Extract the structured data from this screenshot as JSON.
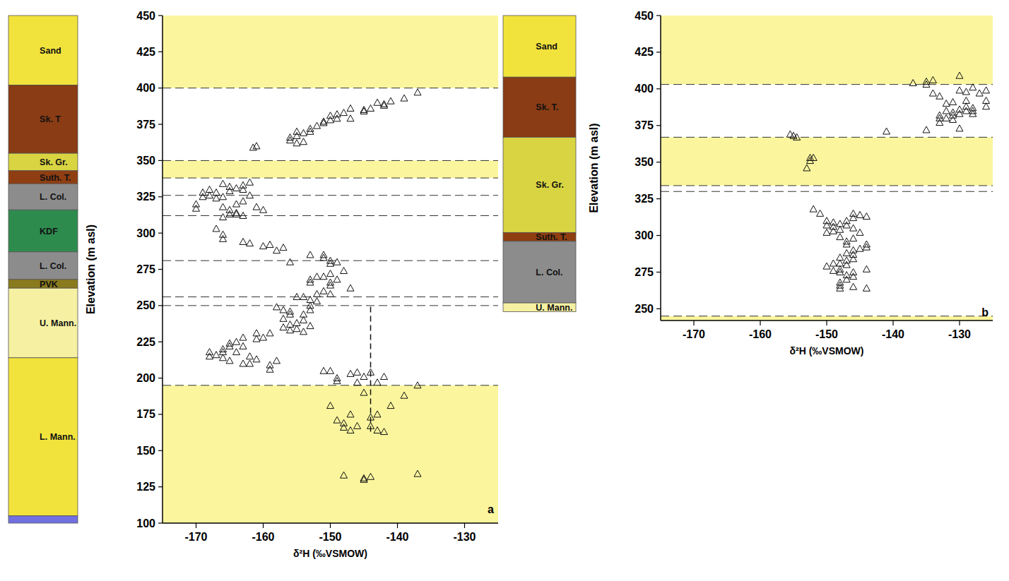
{
  "chart_data": [
    {
      "type": "scatter",
      "panel_label": "a",
      "x_label": "δ²H (‰VSMOW)",
      "y_label": "Elevation (m asl)",
      "marker": "triangle",
      "xlim": [
        -175,
        -125
      ],
      "ylim": [
        100,
        450
      ],
      "xticks": [
        -170,
        -160,
        -150,
        -140,
        -130
      ],
      "yticks": [
        100,
        125,
        150,
        175,
        200,
        225,
        250,
        275,
        300,
        325,
        350,
        375,
        400,
        425,
        450
      ],
      "x": [
        -137,
        -139,
        -141,
        -142,
        -143,
        -142,
        -144,
        -145,
        -145,
        -147,
        -148,
        -149,
        -149,
        -150,
        -150,
        -151,
        -151,
        -152,
        -153,
        -153,
        -154,
        -155,
        -155,
        -156,
        -156,
        -154,
        -155,
        -161.5,
        -161,
        -147,
        -170,
        -170,
        -169,
        -169,
        -168,
        -168,
        -167,
        -167,
        -166,
        -166,
        -165,
        -165,
        -164,
        -164,
        -163,
        -163,
        -164,
        -165,
        -165,
        -166,
        -163,
        -162,
        -162,
        -161,
        -160,
        -163,
        -164,
        -166,
        -167,
        -166,
        -166,
        -163,
        -162,
        -160,
        -159,
        -158,
        -157,
        -156,
        -153,
        -151,
        -151,
        -150,
        -150,
        -149,
        -148,
        -147,
        -150,
        -151,
        -152,
        -153,
        -153,
        -149,
        -150,
        -150,
        -151,
        -150,
        -152,
        -154,
        -155,
        -153,
        -152,
        -153,
        -153,
        -154,
        -156,
        -157,
        -156,
        -155,
        -156,
        -155,
        -156,
        -154,
        -154,
        -153,
        -157,
        -158,
        -157,
        -168,
        -168,
        -167,
        -166,
        -166,
        -165,
        -165,
        -164,
        -163,
        -163,
        -164,
        -162,
        -162,
        -161,
        -163,
        -165,
        -166,
        -160,
        -161,
        -159,
        -159,
        -158,
        -159,
        -161,
        -151,
        -150,
        -149,
        -149,
        -147,
        -146,
        -145,
        -144,
        -143,
        -142,
        -146,
        -137,
        -139,
        -141,
        -143,
        -144,
        -150,
        -149,
        -148,
        -147,
        -147,
        -146,
        -144,
        -143,
        -142,
        -145,
        -148,
        -148,
        -145,
        -145,
        -144,
        -137
      ],
      "values": [
        397,
        393,
        391,
        389,
        390,
        388,
        386,
        385,
        384,
        386,
        383,
        382,
        379,
        381,
        378,
        377,
        376,
        374,
        372,
        370,
        369,
        370,
        367,
        366,
        364,
        363,
        362,
        359,
        360,
        379,
        320,
        317,
        325,
        328,
        330,
        326,
        328,
        324,
        325,
        318,
        316,
        313,
        320,
        314,
        322,
        330,
        331,
        329,
        332,
        334,
        333,
        335,
        326,
        318,
        316,
        312,
        313,
        311,
        303,
        299,
        296,
        294,
        293,
        291,
        292,
        288,
        290,
        280,
        285,
        285,
        283,
        281,
        279,
        280,
        274,
        262,
        272,
        270,
        270,
        268,
        266,
        268,
        266,
        264,
        260,
        258,
        258,
        256,
        256,
        254,
        253,
        250,
        247,
        244,
        246,
        247,
        244,
        238,
        237,
        234,
        233,
        240,
        232,
        236,
        235,
        249,
        241,
        215,
        218,
        216,
        214,
        220,
        224,
        212,
        225,
        228,
        222,
        218,
        215,
        210,
        213,
        210,
        222,
        218,
        228,
        231,
        231,
        209,
        212,
        206,
        227,
        205,
        205,
        200,
        198,
        203,
        197,
        201,
        204,
        197,
        201,
        204,
        195,
        188,
        181,
        175,
        173,
        181,
        171,
        166,
        175,
        164,
        167,
        167,
        164,
        163,
        190,
        169,
        133,
        131,
        130,
        132,
        134
      ],
      "bands": [
        [
          400,
          450
        ],
        [
          338,
          350
        ],
        [
          100,
          195
        ]
      ],
      "boundaries": [
        400,
        350,
        338,
        326,
        312,
        281,
        256,
        250,
        195
      ],
      "vertical_line": {
        "x": -144,
        "y": [
          163,
          250
        ]
      },
      "column": [
        {
          "label": "Sand",
          "top": 450,
          "bottom": 402,
          "color": "#f2e33c"
        },
        {
          "label": "Sk. T",
          "top": 402,
          "bottom": 355,
          "color": "#8a3c14"
        },
        {
          "label": "Sk. Gr.",
          "top": 355,
          "bottom": 343,
          "color": "#d9d442"
        },
        {
          "label": "Suth. T.",
          "top": 343,
          "bottom": 334,
          "color": "#8f3e12"
        },
        {
          "label": "L. Col.",
          "top": 334,
          "bottom": 316,
          "color": "#8c8c8c"
        },
        {
          "label": "KDF",
          "top": 316,
          "bottom": 287,
          "color": "#2e8b4e"
        },
        {
          "label": "L. Col.",
          "top": 287,
          "bottom": 268,
          "color": "#8c8c8c"
        },
        {
          "label": "PVK",
          "top": 268,
          "bottom": 262,
          "color": "#8a7a1e"
        },
        {
          "label": "U. Mann.",
          "top": 262,
          "bottom": 214,
          "color": "#f6f0a2"
        },
        {
          "label": "L. Mann.",
          "top": 214,
          "bottom": 105,
          "color": "#f2e33c"
        },
        {
          "label": null,
          "top": 105,
          "bottom": 100,
          "color": "#7070e0"
        }
      ]
    },
    {
      "type": "scatter",
      "panel_label": "b",
      "x_label": "δ²H (‰VSMOW)",
      "y_label": "Elevation (m asl)",
      "marker": "triangle",
      "xlim": [
        -175,
        -125
      ],
      "ylim": [
        242,
        450
      ],
      "xticks": [
        -170,
        -160,
        -150,
        -140,
        -130
      ],
      "yticks": [
        250,
        275,
        300,
        325,
        350,
        375,
        400,
        425,
        450
      ],
      "x": [
        -130,
        -137,
        -135,
        -134,
        -135,
        -134,
        -133,
        -130,
        -129,
        -128,
        -127,
        -126,
        -126,
        -126,
        -129,
        -129,
        -130,
        -130,
        -131,
        -131,
        -132,
        -131,
        -132,
        -133,
        -133,
        -133,
        -129,
        -128,
        -128,
        -128,
        -130,
        -135,
        -141,
        -132,
        -131,
        -155.5,
        -155,
        -154.5,
        -152.5,
        -152,
        -152.5,
        -153,
        -152,
        -151,
        -150,
        -149,
        -149,
        -149,
        -150,
        -148,
        -147,
        -147,
        -146,
        -146,
        -145,
        -144,
        -146,
        -148,
        -147,
        -146,
        -145,
        -144,
        -145,
        -144,
        -146,
        -146,
        -147,
        -146,
        -147,
        -148,
        -147,
        -149,
        -150,
        -148,
        -149,
        -148,
        -147,
        -146,
        -147,
        -148,
        -148,
        -148,
        -146,
        -144,
        -144,
        -146,
        -147,
        -148,
        -148,
        -150
      ],
      "values": [
        409,
        404,
        405,
        406,
        403,
        397,
        395,
        399,
        398,
        401,
        397,
        399,
        392,
        388,
        392,
        388,
        386,
        383,
        384,
        382,
        385,
        379,
        380,
        377,
        380,
        382,
        385,
        387,
        385,
        383,
        373,
        372,
        371,
        390,
        391,
        369,
        368,
        367,
        353,
        353,
        351,
        346,
        318,
        315,
        310,
        309,
        306,
        303,
        302,
        304,
        310,
        307,
        315,
        312,
        314,
        313,
        305,
        299,
        296,
        298,
        302,
        294,
        291,
        292,
        290,
        287,
        288,
        284,
        283,
        281,
        280,
        281,
        279,
        277,
        276,
        275,
        273,
        272,
        270,
        268,
        266,
        264,
        265,
        264,
        277,
        275,
        294,
        285,
        308,
        307
      ],
      "bands": [
        [
          403,
          450
        ],
        [
          334,
          367
        ],
        [
          242,
          245
        ]
      ],
      "boundaries": [
        403,
        367,
        334,
        330,
        245
      ],
      "column": [
        {
          "label": "Sand",
          "top": 450,
          "bottom": 408,
          "color": "#f2e33c"
        },
        {
          "label": "Sk. T.",
          "top": 408,
          "bottom": 367,
          "color": "#8a3c14"
        },
        {
          "label": "Sk. Gr.",
          "top": 367,
          "bottom": 302,
          "color": "#d9d442"
        },
        {
          "label": "Suth. T.",
          "top": 302,
          "bottom": 296,
          "color": "#8f3e12"
        },
        {
          "label": "L. Col.",
          "top": 296,
          "bottom": 254,
          "color": "#8c8c8c"
        },
        {
          "label": "U. Mann.",
          "top": 254,
          "bottom": 248,
          "color": "#f6f0a2"
        }
      ]
    }
  ]
}
